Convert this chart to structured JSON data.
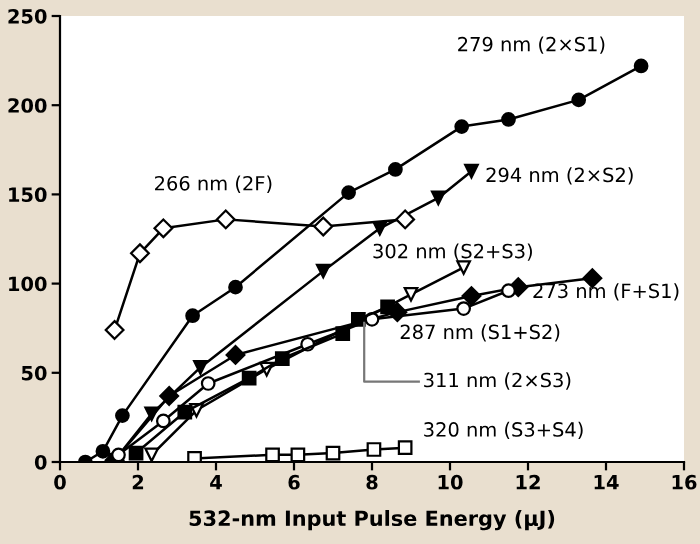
{
  "chart_data": {
    "type": "line",
    "xlabel": "532-nm Input Pulse Energy (μJ)",
    "xlim": [
      0,
      16
    ],
    "ylim": [
      0,
      250
    ],
    "xticks": [
      0,
      2,
      4,
      6,
      8,
      10,
      12,
      14,
      16
    ],
    "yticks": [
      0,
      50,
      100,
      150,
      200,
      250
    ],
    "grid": false,
    "line_style": "solid",
    "series": [
      {
        "name": "279 nm (2×S1)",
        "color": "#000000",
        "marker": "circle",
        "x": [
          0.65,
          1.1,
          1.6,
          3.4,
          4.5,
          7.4,
          8.6,
          10.3,
          11.5,
          13.3,
          14.9
        ],
        "values": [
          0,
          6,
          26,
          82,
          98,
          151,
          164,
          188,
          192,
          203,
          222
        ]
      },
      {
        "name": "294 nm (2×S2)",
        "color": "#000000",
        "marker": "triangle_down",
        "x": [
          1.4,
          2.35,
          3.6,
          6.75,
          8.2,
          9.7,
          10.55
        ],
        "values": [
          1,
          27,
          53,
          107,
          131,
          148,
          163
        ]
      },
      {
        "name": "266 nm (2F)",
        "color": "#000000",
        "marker": "diamond-open",
        "x": [
          1.4,
          2.05,
          2.65,
          4.25,
          6.75,
          8.85
        ],
        "values": [
          74,
          117,
          131,
          136,
          132,
          136
        ]
      },
      {
        "name": "302 nm (S2+S3)",
        "color": "#000000",
        "marker": "triangle_down-open",
        "x": [
          2.35,
          3.5,
          5.3,
          9.0,
          10.35
        ],
        "values": [
          4,
          29,
          52,
          94,
          109
        ]
      },
      {
        "name": "273 nm (F+S1)",
        "color": "#000000",
        "marker": "diamond",
        "x": [
          1.4,
          2.8,
          4.5,
          8.65,
          10.55,
          11.75,
          13.65
        ],
        "values": [
          1,
          37,
          60,
          84,
          93,
          98,
          103
        ]
      },
      {
        "name": "287 nm (S1+S2)",
        "color": "#000000",
        "marker": "circle-open",
        "x": [
          1.5,
          2.65,
          3.8,
          6.35,
          8.0,
          10.35,
          11.5
        ],
        "values": [
          4,
          23,
          44,
          66,
          80,
          86,
          96
        ]
      },
      {
        "name": "311 nm (2×S3)",
        "color": "#000000",
        "marker": "square",
        "x": [
          1.95,
          3.2,
          4.85,
          5.7,
          7.25,
          7.65,
          8.4
        ],
        "values": [
          5,
          28,
          47,
          58,
          72,
          80,
          87
        ]
      },
      {
        "name": "320 nm (S3+S4)",
        "color": "#000000",
        "marker": "square-open",
        "x": [
          3.45,
          5.45,
          6.1,
          7.0,
          8.05,
          8.85
        ],
        "values": [
          2,
          4,
          4,
          5,
          7,
          8
        ]
      }
    ]
  }
}
